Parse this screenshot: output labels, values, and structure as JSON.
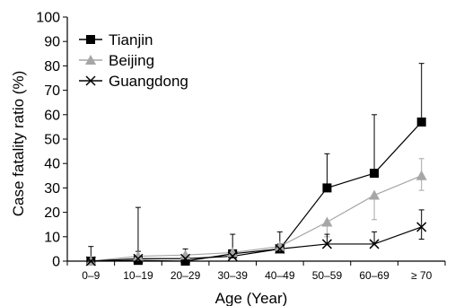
{
  "chart_data": {
    "type": "line",
    "title": "",
    "xlabel": "Age (Year)",
    "ylabel": "Case fatality ratio (%)",
    "ylim": [
      0,
      100
    ],
    "yticks": [
      0,
      10,
      20,
      30,
      40,
      50,
      60,
      70,
      80,
      90,
      100
    ],
    "categories": [
      "0–9",
      "10–19",
      "20–29",
      "30–39",
      "40–49",
      "50–59",
      "60–69",
      "≥ 70"
    ],
    "grid": false,
    "legend_position": "top-left",
    "series": [
      {
        "name": "Tianjin",
        "color": "#000000",
        "marker": "square",
        "values": [
          0,
          0.3,
          0,
          3,
          5,
          30,
          36,
          57
        ],
        "upper": [
          null,
          22,
          null,
          null,
          12,
          44,
          60,
          81
        ],
        "lower": [
          null,
          null,
          null,
          null,
          null,
          null,
          null,
          null
        ]
      },
      {
        "name": "Beijing",
        "color": "#a6a6a6",
        "marker": "triangle",
        "values": [
          0,
          2,
          2.5,
          3.5,
          6,
          16,
          27,
          35
        ],
        "upper": [
          null,
          null,
          null,
          null,
          null,
          null,
          null,
          42
        ],
        "lower": [
          null,
          null,
          null,
          null,
          null,
          10,
          17,
          29
        ]
      },
      {
        "name": "Guangdong",
        "color": "#000000",
        "marker": "x",
        "values": [
          0,
          1,
          1,
          2,
          5,
          7,
          7,
          14
        ],
        "upper": [
          6,
          4,
          5,
          11,
          7,
          11,
          12,
          21
        ],
        "lower": [
          null,
          null,
          null,
          null,
          null,
          null,
          null,
          9
        ]
      }
    ]
  }
}
